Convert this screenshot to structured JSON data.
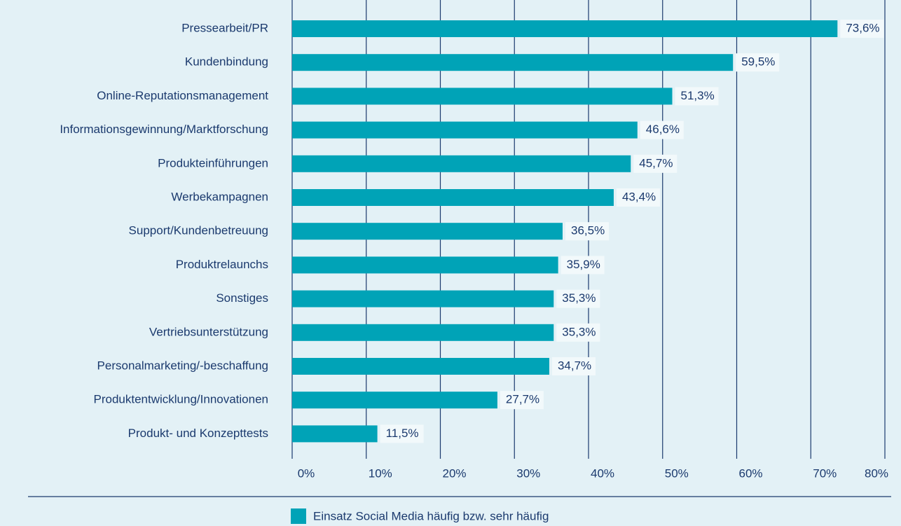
{
  "chart_data": {
    "type": "bar",
    "orientation": "horizontal",
    "categories": [
      "Pressearbeit/PR",
      "Kundenbindung",
      "Online-Reputationsmanagement",
      "Informationsgewinnung/Marktforschung",
      "Produkteinführungen",
      "Werbekampagnen",
      "Support/Kundenbetreuung",
      "Produktrelaunchs",
      "Sonstiges",
      "Vertriebsunterstützung",
      "Personalmarketing/-beschaffung",
      "Produktentwicklung/Innovationen",
      "Produkt- und Konzepttests"
    ],
    "series": [
      {
        "name": "Einsatz Social Media häufig bzw. sehr häufig",
        "color": "#00a3b7",
        "values": [
          73.6,
          59.5,
          51.3,
          46.6,
          45.7,
          43.4,
          36.5,
          35.9,
          35.3,
          35.3,
          34.7,
          27.7,
          11.5
        ],
        "value_labels": [
          "73,6%",
          "59,5%",
          "51,3%",
          "46,6%",
          "45,7%",
          "43,4%",
          "36,5%",
          "35,9%",
          "35,3%",
          "35,3%",
          "34,7%",
          "27,7%",
          "11,5%"
        ]
      }
    ],
    "xlim": [
      0,
      80
    ],
    "xticks": [
      {
        "value": 0,
        "label": "0%"
      },
      {
        "value": 10,
        "label": "10%"
      },
      {
        "value": 20,
        "label": "20%"
      },
      {
        "value": 30,
        "label": "30%"
      },
      {
        "value": 40,
        "label": "40%"
      },
      {
        "value": 50,
        "label": "50%"
      },
      {
        "value": 60,
        "label": "60%"
      },
      {
        "value": 70,
        "label": "70%"
      },
      {
        "value": 80,
        "label": "80%"
      }
    ],
    "grid": true,
    "legend": "bottom"
  }
}
